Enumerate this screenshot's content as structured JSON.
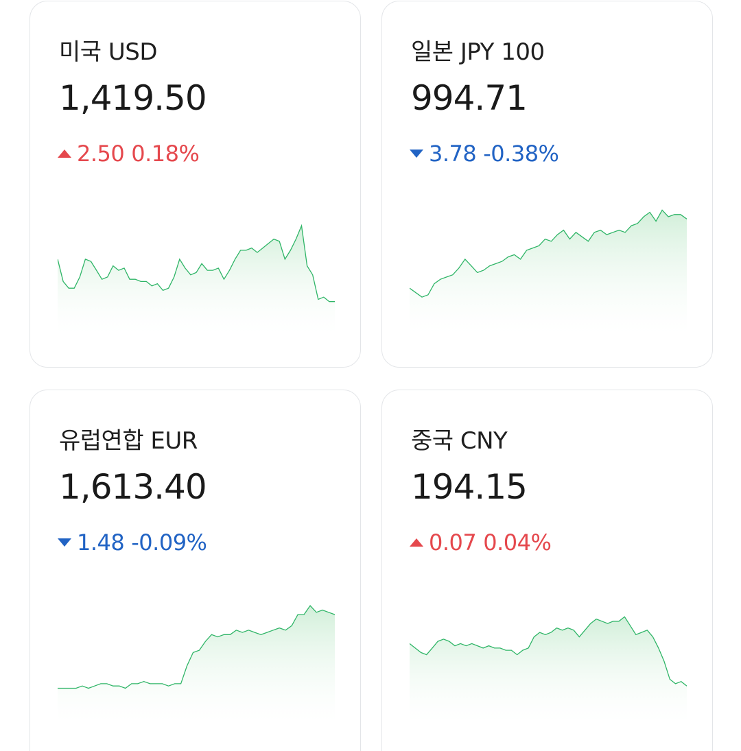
{
  "cards": [
    {
      "name": "미국 USD",
      "rate": "1,419.50",
      "change": "2.50",
      "change_pct": "0.18%",
      "direction": "up",
      "series": [
        58,
        48,
        45,
        45,
        50,
        58,
        57,
        53,
        49,
        50,
        55,
        53,
        54,
        49,
        49,
        48,
        48,
        46,
        47,
        44,
        45,
        50,
        58,
        54,
        51,
        52,
        56,
        53,
        53,
        54,
        49,
        53,
        58,
        62,
        62,
        63,
        61,
        63,
        65,
        67,
        66,
        58,
        62,
        67,
        73,
        55,
        51,
        40,
        41,
        39,
        39
      ]
    },
    {
      "name": "일본 JPY 100",
      "rate": "994.71",
      "change": "3.78",
      "change_pct": "-0.38%",
      "direction": "down",
      "series": [
        45,
        43,
        41,
        42,
        47,
        49,
        50,
        51,
        54,
        58,
        55,
        52,
        53,
        55,
        56,
        57,
        59,
        60,
        58,
        62,
        63,
        64,
        67,
        66,
        69,
        71,
        67,
        70,
        68,
        66,
        70,
        71,
        69,
        70,
        71,
        70,
        73,
        74,
        77,
        79,
        75,
        80,
        77,
        78,
        78,
        76
      ]
    },
    {
      "name": "유럽연합 EUR",
      "rate": "1,613.40",
      "change": "1.48",
      "change_pct": "-0.09%",
      "direction": "down",
      "series": [
        40,
        40,
        40,
        40,
        41,
        40,
        41,
        42,
        42,
        41,
        41,
        40,
        42,
        42,
        43,
        42,
        42,
        42,
        41,
        42,
        42,
        50,
        56,
        57,
        61,
        64,
        63,
        64,
        64,
        66,
        65,
        66,
        65,
        64,
        65,
        66,
        67,
        66,
        68,
        73,
        73,
        77,
        74,
        75,
        74,
        73
      ]
    },
    {
      "name": "중국 CNY",
      "rate": "194.15",
      "change": "0.07",
      "change_pct": "0.04%",
      "direction": "up",
      "series": [
        60,
        58,
        56,
        55,
        58,
        61,
        62,
        61,
        59,
        60,
        59,
        60,
        59,
        58,
        59,
        58,
        58,
        57,
        57,
        55,
        57,
        58,
        63,
        65,
        64,
        65,
        67,
        66,
        67,
        66,
        63,
        66,
        69,
        71,
        70,
        69,
        70,
        70,
        72,
        68,
        64,
        65,
        66,
        63,
        58,
        52,
        44,
        42,
        43,
        41
      ]
    }
  ],
  "colors": {
    "up": "#e5484d",
    "down": "#2163c4",
    "line": "#2fb567",
    "fill": "#d9f3df"
  }
}
